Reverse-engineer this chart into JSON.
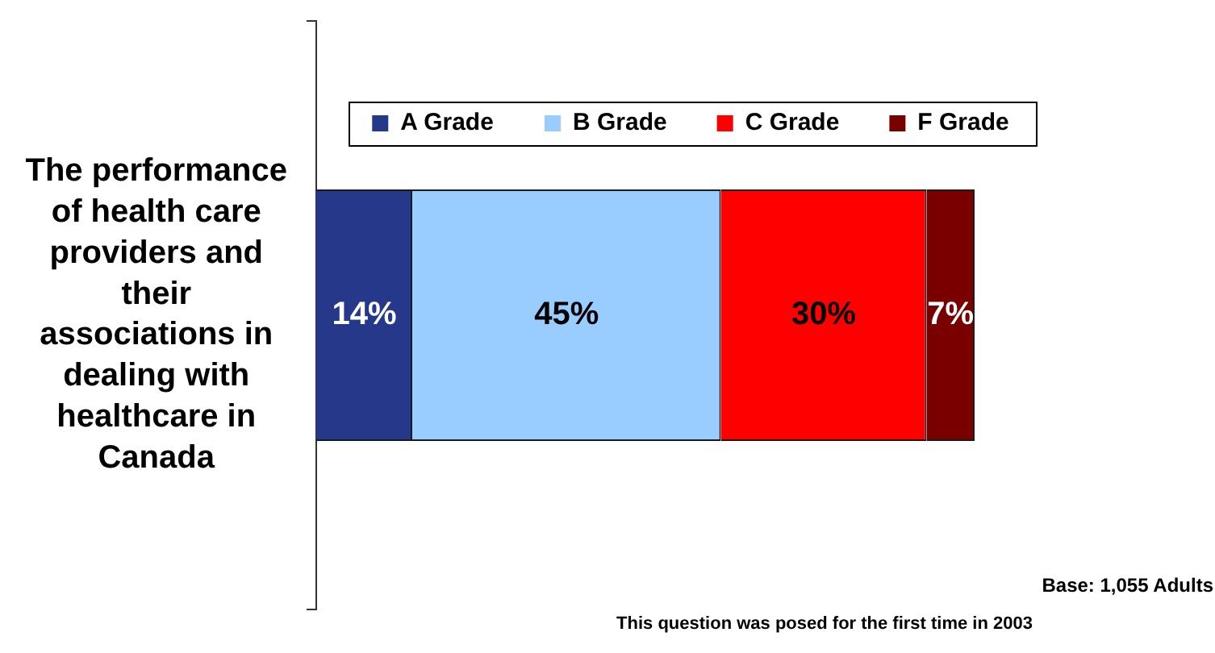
{
  "chart_data": {
    "type": "bar",
    "orientation": "horizontal",
    "stacked": true,
    "categories": [
      "The performance of health care providers and their associations in dealing with healthcare in Canada"
    ],
    "series": [
      {
        "name": "A Grade",
        "color": "#26388a",
        "values": [
          14
        ],
        "value_labels": [
          "14%"
        ]
      },
      {
        "name": "B Grade",
        "color": "#99ccff",
        "values": [
          45
        ],
        "value_labels": [
          "45%"
        ]
      },
      {
        "name": "C Grade",
        "color": "#ff0000",
        "values": [
          30
        ],
        "value_labels": [
          "30%"
        ]
      },
      {
        "name": "F Grade",
        "color": "#7a0000",
        "values": [
          7
        ],
        "value_labels": [
          "7%"
        ]
      }
    ],
    "tick_labels": "y",
    "legend": "top",
    "annotations": [
      "Base: 1,055 Adults",
      "This question was posed for the first time in 2003"
    ]
  }
}
